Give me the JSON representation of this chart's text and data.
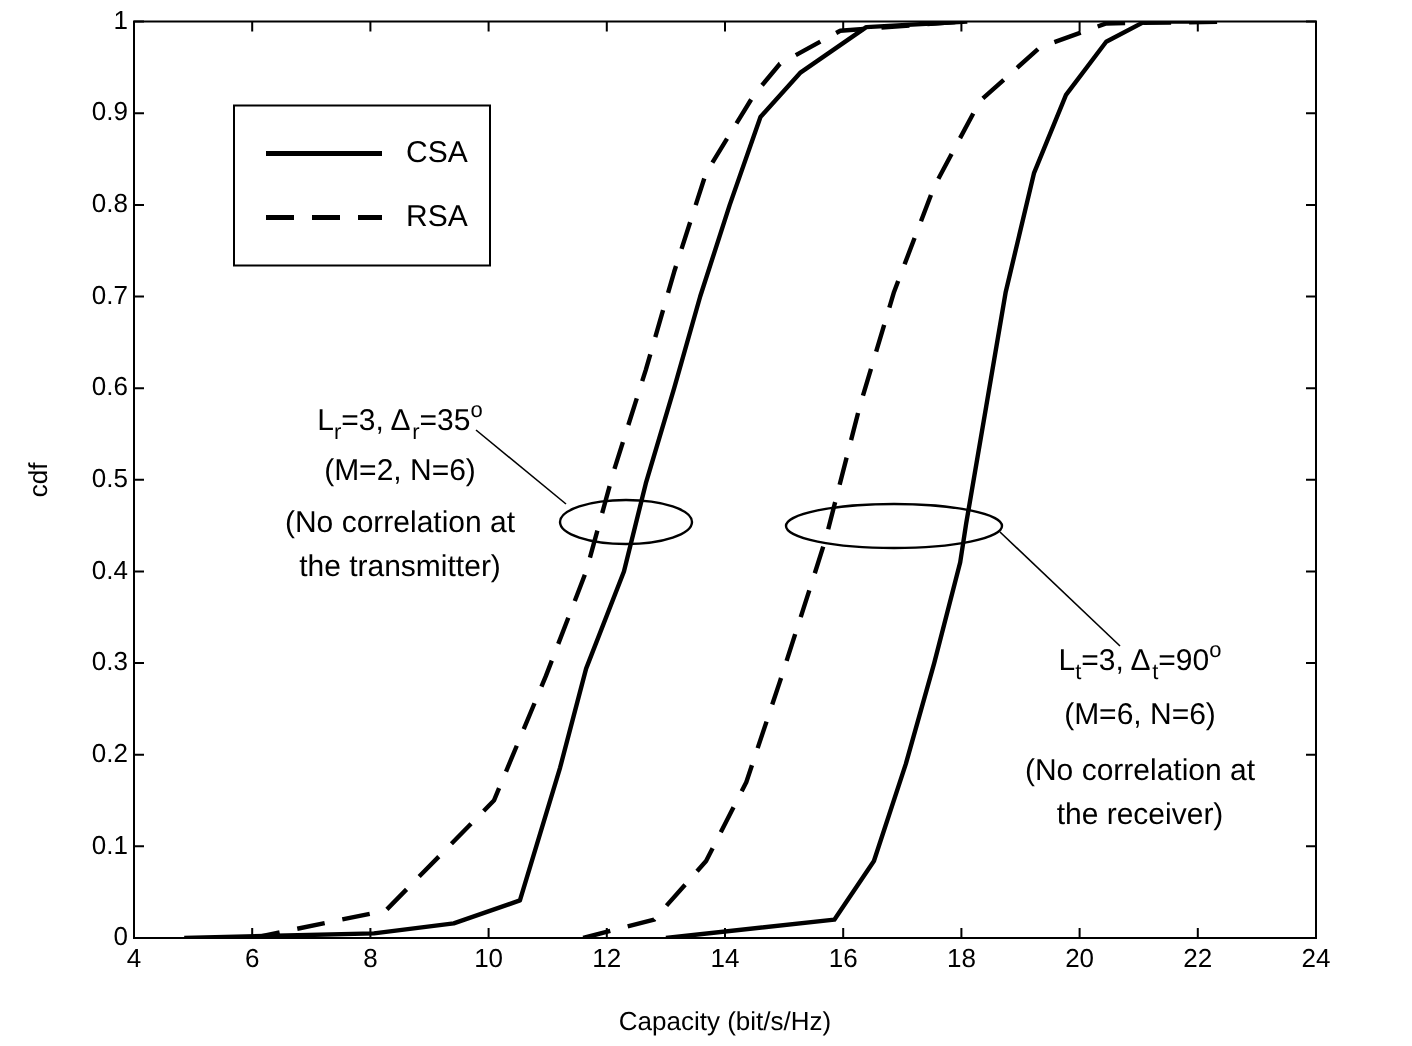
{
  "chart_data": {
    "type": "line",
    "xlabel": "Capacity (bit/s/Hz)",
    "ylabel": "cdf",
    "xlim": [
      4,
      24
    ],
    "xticks": [
      4,
      6,
      8,
      10,
      12,
      14,
      16,
      18,
      20,
      22,
      24
    ],
    "ylim": [
      0,
      1
    ],
    "yticks": [
      0,
      0.1,
      0.2,
      0.3,
      0.4,
      0.5,
      0.6,
      0.7,
      0.8,
      0.9,
      1
    ],
    "grid": false,
    "legend": "top left",
    "marker": "none",
    "series": [
      {
        "name": "CSA",
        "color": "#000000",
        "line_style": "solid",
        "x": [
          4.85,
          8.06,
          9.41,
          10.53,
          11.21,
          11.65,
          12.29,
          12.66,
          13.14,
          13.58,
          14.08,
          14.6,
          15.27,
          16.39,
          18.1
        ],
        "values": [
          0,
          0.005,
          0.016,
          0.041,
          0.186,
          0.294,
          0.4,
          0.496,
          0.6,
          0.7,
          0.8,
          0.896,
          0.944,
          0.994,
          1
        ]
      },
      {
        "name": "RSA",
        "color": "#000000",
        "line_style": "dashed",
        "x": [
          6,
          8.26,
          10.09,
          10.97,
          11.65,
          12.12,
          12.66,
          13.14,
          13.68,
          14.49,
          14.93,
          15.95,
          18
        ],
        "values": [
          0,
          0.03,
          0.15,
          0.286,
          0.4,
          0.51,
          0.62,
          0.727,
          0.835,
          0.92,
          0.954,
          0.99,
          1
        ]
      },
      {
        "color": "#000000",
        "line_style": "dashed",
        "x": [
          11.6,
          12.8,
          13.68,
          14.36,
          14.93,
          15.5,
          15.71,
          16.28,
          16.86,
          17.54,
          18.31,
          19.33,
          20.45,
          22.5
        ],
        "values": [
          0,
          0.02,
          0.084,
          0.17,
          0.28,
          0.394,
          0.437,
          0.58,
          0.705,
          0.82,
          0.913,
          0.972,
          0.998,
          1
        ]
      },
      {
        "color": "#000000",
        "line_style": "solid",
        "x": [
          13,
          15.85,
          16.52,
          17.06,
          17.54,
          17.98,
          18.08,
          18.42,
          18.75,
          19.23,
          19.77,
          20.45,
          21.1,
          22
        ],
        "values": [
          0,
          0.02,
          0.084,
          0.19,
          0.3,
          0.41,
          0.452,
          0.58,
          0.705,
          0.835,
          0.92,
          0.978,
          1,
          1
        ]
      }
    ],
    "annotations": [
      "L$_{r}$=3, Δ$_{r}$=35$^{o}$",
      "(M=2, N=6)",
      "(No correlation at the transmitter)",
      "L$_{t}$=3, Δ$_{t}$=90$^{o}$",
      "(M=6, N=6)",
      "(No correlation at the receiver)"
    ]
  }
}
